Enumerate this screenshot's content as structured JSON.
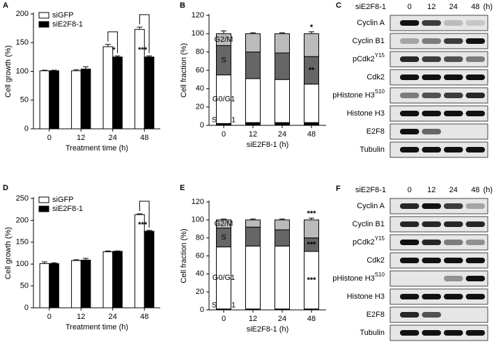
{
  "chart_data": [
    {
      "type": "bar",
      "panel": "A",
      "ylabel": "Cell growth (%)",
      "xlabel": "Treatment time (h)",
      "categories": [
        "0",
        "12",
        "24",
        "48"
      ],
      "series": [
        {
          "name": "siGFP",
          "color": "#ffffff",
          "values": [
            101,
            101,
            143,
            173
          ],
          "errors": [
            1,
            2,
            4,
            4
          ]
        },
        {
          "name": "siE2F8-1",
          "color": "#000000",
          "values": [
            101,
            104,
            125,
            125
          ],
          "errors": [
            1,
            4,
            2,
            2
          ]
        }
      ],
      "annotations": [
        {
          "text": "*",
          "category": 2
        },
        {
          "text": "***",
          "category": 3
        }
      ],
      "ylim": [
        0,
        200
      ],
      "yticks": [
        0,
        50,
        100,
        150,
        200
      ],
      "legend": "top-left"
    },
    {
      "type": "stacked-bar",
      "panel": "B",
      "ylabel": "Cell fraction (%)",
      "xlabel": "siE2F8-1 (h)",
      "categories": [
        "0",
        "12",
        "24",
        "48"
      ],
      "series": [
        {
          "name": "SubG1",
          "color": "#000000",
          "values": [
            2,
            3,
            3,
            3
          ],
          "errors": [
            1,
            1,
            1,
            1
          ]
        },
        {
          "name": "G0/G1",
          "color": "#ffffff",
          "values": [
            53,
            48,
            47,
            42
          ],
          "errors": [
            1,
            1,
            2,
            1
          ]
        },
        {
          "name": "S",
          "color": "#666666",
          "values": [
            32,
            29,
            29,
            30
          ],
          "errors": [
            2,
            1,
            1,
            2
          ]
        },
        {
          "name": "G2/M",
          "color": "#bbbbbb",
          "values": [
            13,
            20,
            21,
            25
          ],
          "errors": [
            3,
            1,
            1,
            2
          ]
        }
      ],
      "annotations": [
        {
          "text": "*",
          "category": 3,
          "segment": 3
        },
        {
          "text": "**",
          "category": 3,
          "segment": 2
        }
      ],
      "ylim": [
        0,
        120
      ],
      "yticks": [
        0,
        20,
        40,
        60,
        80,
        100,
        120
      ]
    },
    {
      "type": "bar",
      "panel": "D",
      "ylabel": "Cell growth (%)",
      "xlabel": "Treatment time (h)",
      "categories": [
        "0",
        "12",
        "24",
        "48"
      ],
      "series": [
        {
          "name": "siGFP",
          "color": "#ffffff",
          "values": [
            101,
            108,
            128,
            213
          ],
          "errors": [
            4,
            2,
            2,
            2
          ]
        },
        {
          "name": "siE2F8-1",
          "color": "#000000",
          "values": [
            101,
            109,
            129,
            175
          ],
          "errors": [
            2,
            4,
            1,
            2
          ]
        }
      ],
      "annotations": [
        {
          "text": "***",
          "category": 3
        }
      ],
      "ylim": [
        0,
        250
      ],
      "yticks": [
        0,
        50,
        100,
        150,
        200,
        250
      ],
      "legend": "top-left"
    },
    {
      "type": "stacked-bar",
      "panel": "E",
      "ylabel": "Cell fraction (%)",
      "xlabel": "siE2F8-1 (h)",
      "categories": [
        "0",
        "12",
        "24",
        "48"
      ],
      "series": [
        {
          "name": "SubG1",
          "color": "#000000",
          "values": [
            1,
            1,
            1,
            1
          ],
          "errors": [
            0,
            0,
            0,
            0
          ]
        },
        {
          "name": "G0/G1",
          "color": "#ffffff",
          "values": [
            69,
            70,
            70,
            64
          ],
          "errors": [
            1,
            1,
            1,
            2
          ]
        },
        {
          "name": "S",
          "color": "#666666",
          "values": [
            21,
            21,
            18,
            15
          ],
          "errors": [
            1,
            1,
            1,
            1
          ]
        },
        {
          "name": "G2/M",
          "color": "#bbbbbb",
          "values": [
            9,
            8,
            11,
            20
          ],
          "errors": [
            1,
            1,
            1,
            2
          ]
        }
      ],
      "annotations": [
        {
          "text": "***",
          "category": 3,
          "segment": 3
        },
        {
          "text": "***",
          "category": 3,
          "segment": 2
        },
        {
          "text": "***",
          "category": 3,
          "segment": 1
        }
      ],
      "ylim": [
        0,
        120
      ],
      "yticks": [
        0,
        20,
        40,
        60,
        80,
        100,
        120
      ]
    }
  ],
  "blots": [
    {
      "panel": "C",
      "header": "siE2F8-1",
      "columns": [
        "0",
        "12",
        "24",
        "48"
      ],
      "unit": "(h)",
      "rows": [
        {
          "label": "Cyclin A"
        },
        {
          "label": "Cyclin B1"
        },
        {
          "label": "pCdk2",
          "sup": "Y15"
        },
        {
          "label": "Cdk2"
        },
        {
          "label": "pHistone H3",
          "sup": "S10"
        },
        {
          "label": "Histone H3"
        },
        {
          "label": "E2F8"
        },
        {
          "label": "Tubulin"
        }
      ]
    },
    {
      "panel": "F",
      "header": "siE2F8-1",
      "columns": [
        "0",
        "12",
        "24",
        "48"
      ],
      "unit": "(h)",
      "rows": [
        {
          "label": "Cyclin A"
        },
        {
          "label": "Cyclin B1"
        },
        {
          "label": "pCdk2",
          "sup": "Y15"
        },
        {
          "label": "Cdk2"
        },
        {
          "label": "pHistone H3",
          "sup": "S10"
        },
        {
          "label": "Histone H3"
        },
        {
          "label": "E2F8"
        },
        {
          "label": "Tubulin"
        }
      ]
    }
  ]
}
